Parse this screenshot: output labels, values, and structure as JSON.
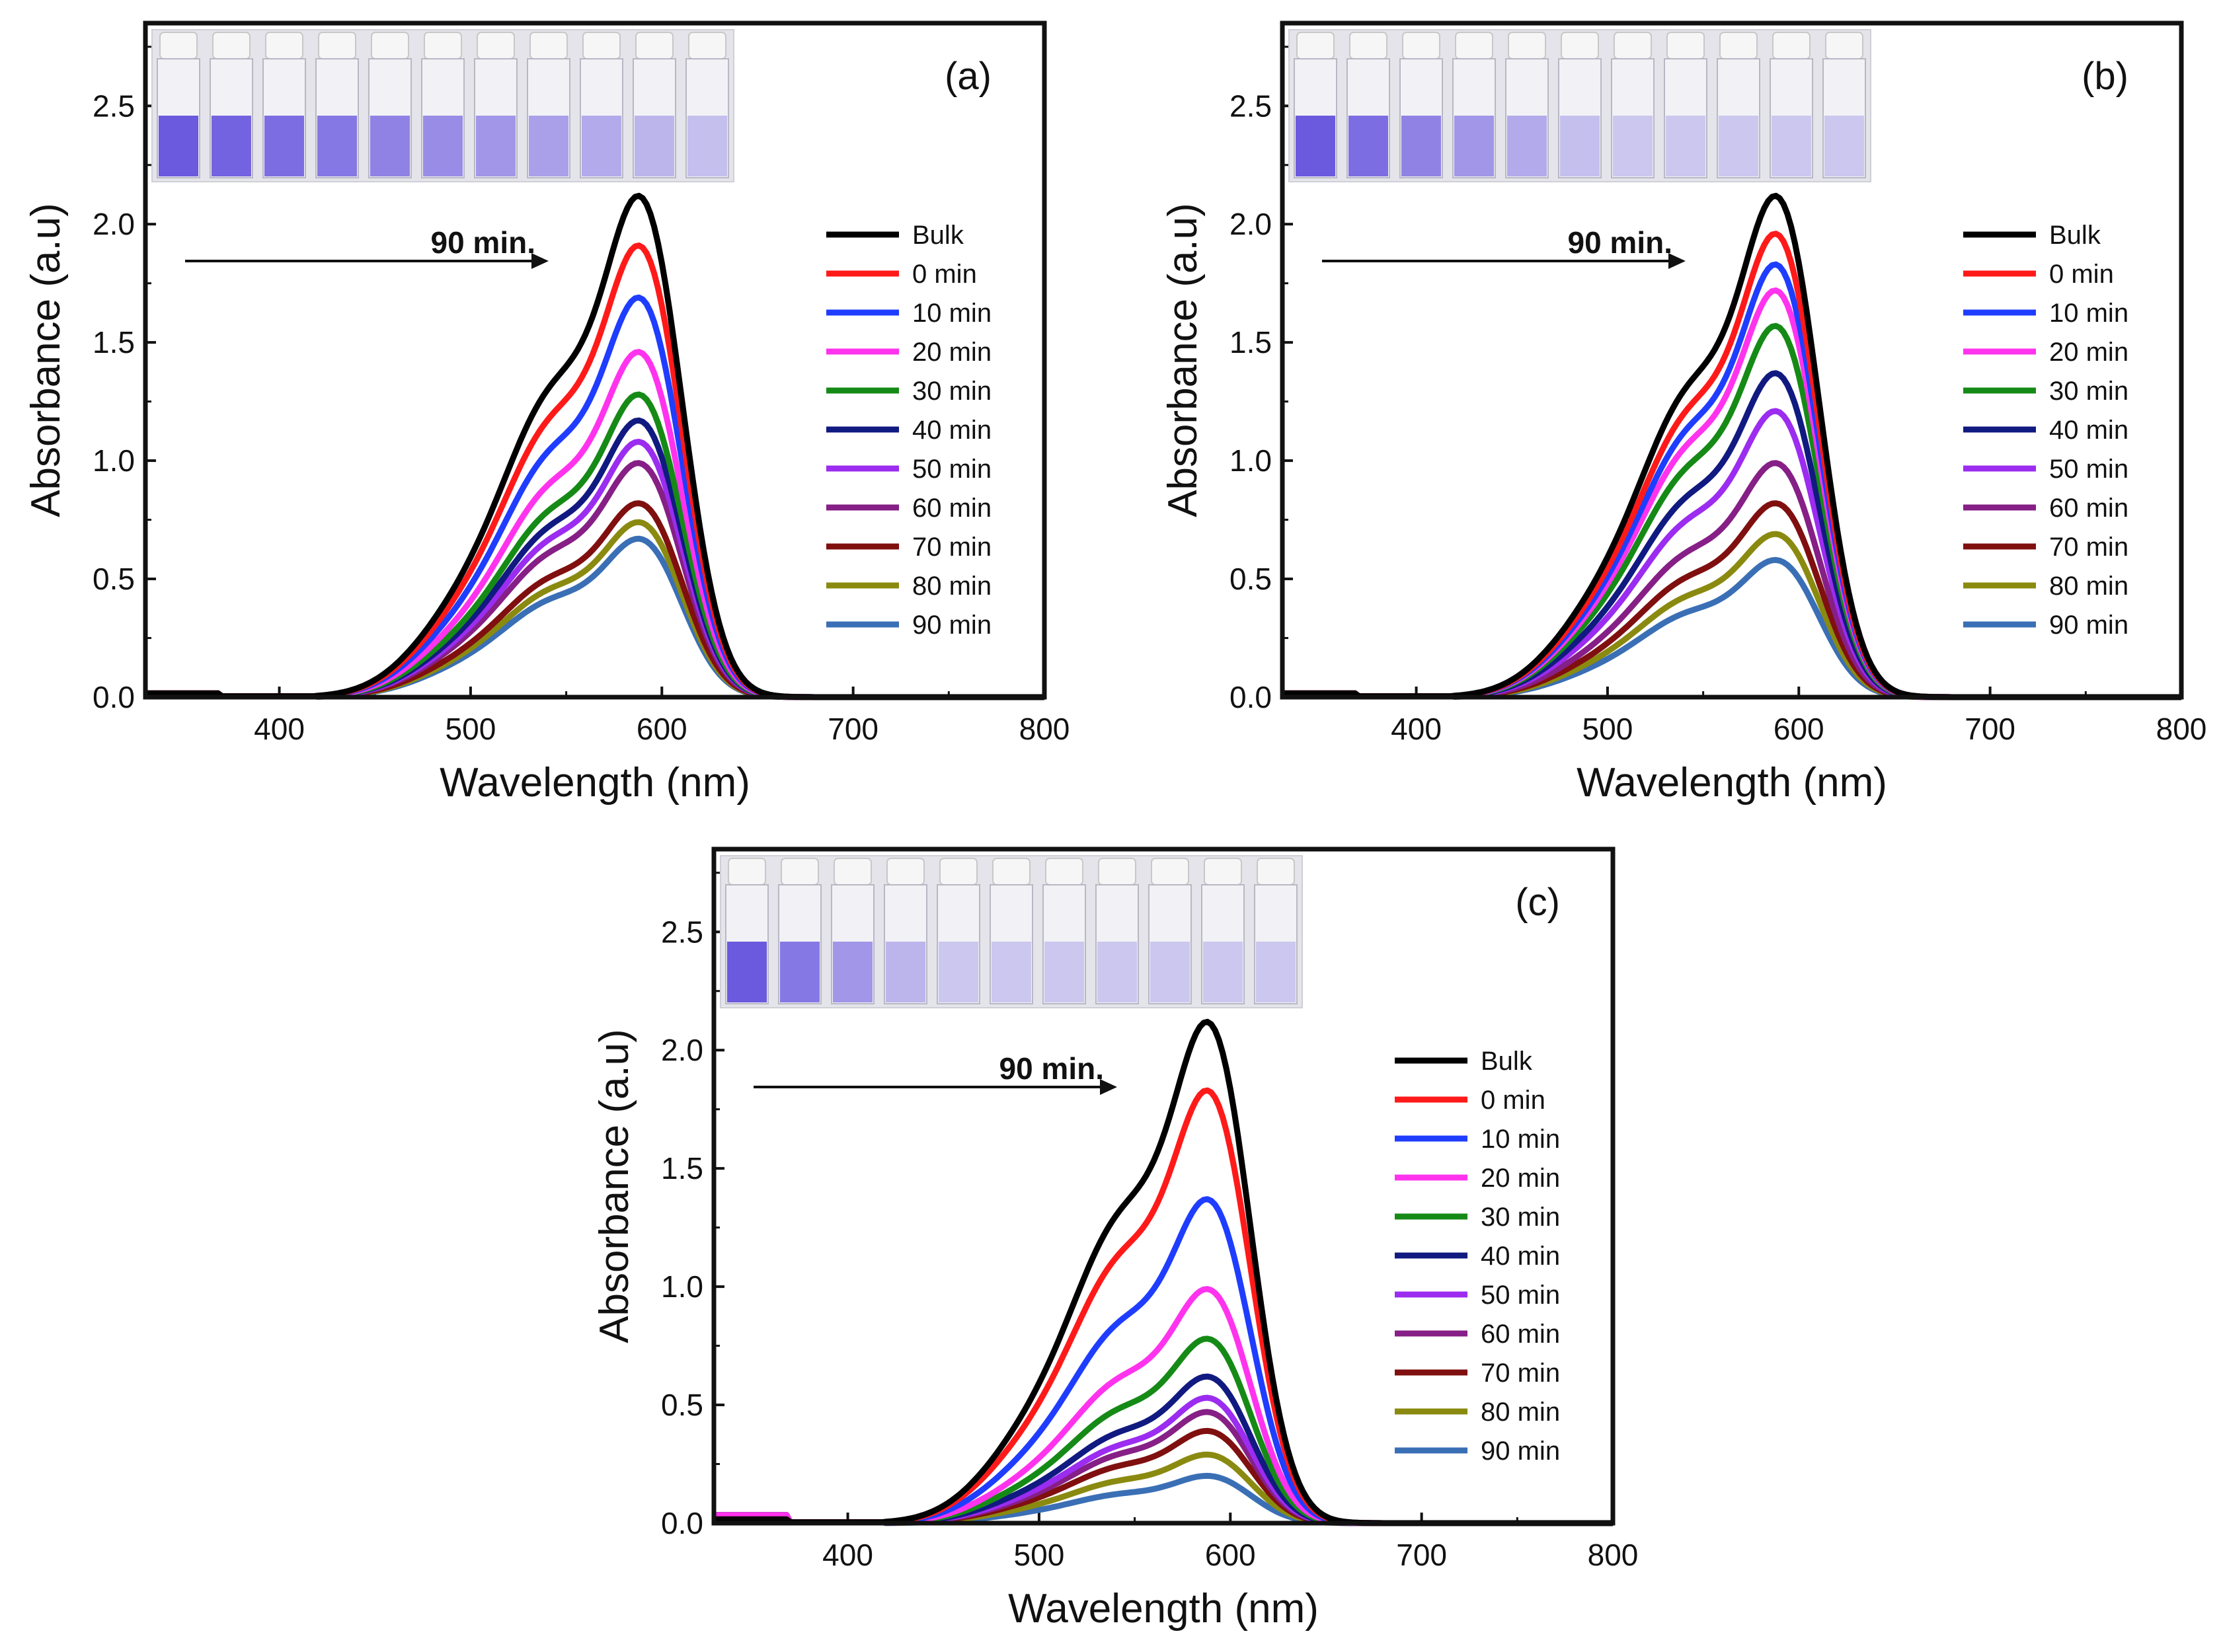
{
  "chart_data": [
    {
      "type": "line",
      "panel_label": "(a)",
      "xlabel": "Wavelength (nm)",
      "ylabel": "Absorbance (a.u)",
      "xlim": [
        330,
        800
      ],
      "ylim": [
        0,
        2.85
      ],
      "xticks": [
        400,
        500,
        600,
        700,
        800
      ],
      "yticks": [
        0.0,
        0.5,
        1.0,
        1.5,
        2.0,
        2.5
      ],
      "annotation": "90 min.",
      "inset_photo": "vials-photo",
      "legend": [
        "Bulk",
        " 0 min",
        "10 min",
        "20 min",
        "30 min",
        "40 min",
        "50 min",
        "60 min",
        "70 min",
        "80 min",
        "90 min"
      ],
      "series": [
        {
          "name": "Bulk",
          "color": "#000000",
          "peak": 2.12
        },
        {
          "name": "0 min",
          "color": "#ff1a1a",
          "peak": 1.91
        },
        {
          "name": "10 min",
          "color": "#1f3dff",
          "peak": 1.69
        },
        {
          "name": "20 min",
          "color": "#ff33ee",
          "peak": 1.46
        },
        {
          "name": "30 min",
          "color": "#168a16",
          "peak": 1.28
        },
        {
          "name": "40 min",
          "color": "#111a80",
          "peak": 1.17
        },
        {
          "name": "50 min",
          "color": "#9b2cf0",
          "peak": 1.08
        },
        {
          "name": "60 min",
          "color": "#861f86",
          "peak": 0.99
        },
        {
          "name": "70 min",
          "color": "#800f0f",
          "peak": 0.82
        },
        {
          "name": "80 min",
          "color": "#8a8a10",
          "peak": 0.74
        },
        {
          "name": "90 min",
          "color": "#3a6fb5",
          "peak": 0.67
        }
      ]
    },
    {
      "type": "line",
      "panel_label": "(b)",
      "xlabel": "Wavelength (nm)",
      "ylabel": "Absorbance (a.u)",
      "xlim": [
        330,
        800
      ],
      "ylim": [
        0,
        2.85
      ],
      "xticks": [
        400,
        500,
        600,
        700,
        800
      ],
      "yticks": [
        0.0,
        0.5,
        1.0,
        1.5,
        2.0,
        2.5
      ],
      "annotation": "90 min.",
      "inset_photo": "vials-photo",
      "legend": [
        "Bulk",
        " 0 min",
        "10 min",
        "20 min",
        "30 min",
        "40 min",
        "50 min",
        "60 min",
        "70 min",
        "80 min",
        "90 min"
      ],
      "series": [
        {
          "name": "Bulk",
          "color": "#000000",
          "peak": 2.12
        },
        {
          "name": "0 min",
          "color": "#ff1a1a",
          "peak": 1.96
        },
        {
          "name": "10 min",
          "color": "#1f3dff",
          "peak": 1.83
        },
        {
          "name": "20 min",
          "color": "#ff33ee",
          "peak": 1.72
        },
        {
          "name": "30 min",
          "color": "#168a16",
          "peak": 1.57
        },
        {
          "name": "40 min",
          "color": "#111a80",
          "peak": 1.37
        },
        {
          "name": "50 min",
          "color": "#9b2cf0",
          "peak": 1.21
        },
        {
          "name": "60 min",
          "color": "#861f86",
          "peak": 0.99
        },
        {
          "name": "70 min",
          "color": "#800f0f",
          "peak": 0.82
        },
        {
          "name": "80 min",
          "color": "#8a8a10",
          "peak": 0.69
        },
        {
          "name": "90 min",
          "color": "#3a6fb5",
          "peak": 0.58
        }
      ]
    },
    {
      "type": "line",
      "panel_label": "(c)",
      "xlabel": "Wavelength (nm)",
      "ylabel": "Absorbance (a.u)",
      "xlim": [
        330,
        800
      ],
      "ylim": [
        0,
        2.85
      ],
      "xticks": [
        400,
        500,
        600,
        700,
        800
      ],
      "yticks": [
        0.0,
        0.5,
        1.0,
        1.5,
        2.0,
        2.5
      ],
      "annotation": "90 min.",
      "inset_photo": "vials-photo",
      "legend": [
        "Bulk",
        " 0 min",
        "10 min",
        "20 min",
        "30 min",
        "40 min",
        "50 min",
        "60 min",
        "70 min",
        "80 min",
        "90 min"
      ],
      "series": [
        {
          "name": "Bulk",
          "color": "#000000",
          "peak": 2.12
        },
        {
          "name": "0 min",
          "color": "#ff1a1a",
          "peak": 1.83
        },
        {
          "name": "10 min",
          "color": "#1f3dff",
          "peak": 1.37
        },
        {
          "name": "20 min",
          "color": "#ff33ee",
          "peak": 0.99
        },
        {
          "name": "30 min",
          "color": "#168a16",
          "peak": 0.78
        },
        {
          "name": "40 min",
          "color": "#111a80",
          "peak": 0.62
        },
        {
          "name": "50 min",
          "color": "#9b2cf0",
          "peak": 0.53
        },
        {
          "name": "60 min",
          "color": "#861f86",
          "peak": 0.47
        },
        {
          "name": "70 min",
          "color": "#800f0f",
          "peak": 0.39
        },
        {
          "name": "80 min",
          "color": "#8a8a10",
          "peak": 0.29
        },
        {
          "name": "90 min",
          "color": "#3a6fb5",
          "peak": 0.2
        }
      ]
    }
  ]
}
